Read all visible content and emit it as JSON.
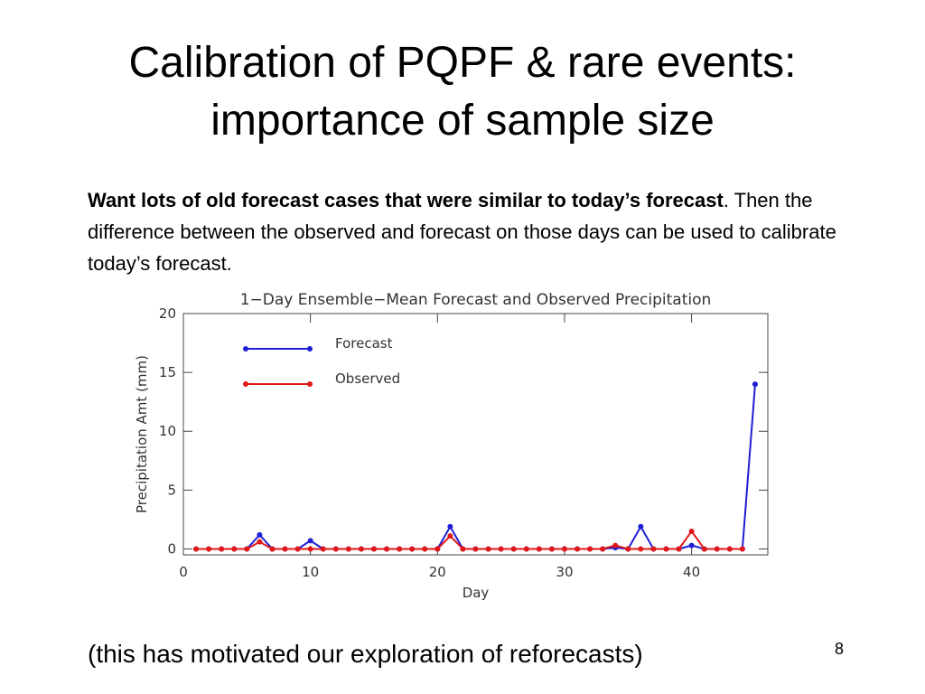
{
  "title": [
    "Calibration of PQPF & rare events:",
    "importance of sample size"
  ],
  "body": {
    "bold": "Want lots of old forecast cases that were similar to today’s forecast",
    "rest": ".  Then the difference between the observed and forecast on those days can be used to calibrate today’s forecast."
  },
  "footer": "(this has motivated our exploration of reforecasts)",
  "page_number": "8",
  "chart_data": {
    "type": "line",
    "title": "1−Day Ensemble−Mean Forecast and Observed Precipitation",
    "x_label": "Day",
    "y_label": "Precipitation Amt (mm)",
    "x": [
      1,
      2,
      3,
      4,
      5,
      6,
      7,
      8,
      9,
      10,
      11,
      12,
      13,
      14,
      15,
      16,
      17,
      18,
      19,
      20,
      21,
      22,
      23,
      24,
      25,
      26,
      27,
      28,
      29,
      30,
      31,
      32,
      33,
      34,
      35,
      36,
      37,
      38,
      39,
      40,
      41,
      42,
      43,
      44,
      45
    ],
    "series": [
      {
        "name": "Forecast",
        "color": "#1f1fd6",
        "values": [
          0,
          0,
          0,
          0,
          0,
          1.2,
          0,
          0,
          0,
          0.7,
          0,
          0,
          0,
          0,
          0,
          0,
          0,
          0,
          0,
          0,
          1.9,
          0,
          0,
          0,
          0,
          0,
          0,
          0,
          0,
          0,
          0,
          0,
          0,
          0.1,
          0,
          1.9,
          0,
          0,
          0,
          0.3,
          0,
          0,
          0,
          0,
          14
        ]
      },
      {
        "name": "Observed",
        "color": "#e01818",
        "values": [
          0,
          0,
          0,
          0,
          0,
          0.6,
          0,
          0,
          0,
          0,
          0,
          0,
          0,
          0,
          0,
          0,
          0,
          0,
          0,
          0,
          1.1,
          0,
          0,
          0,
          0,
          0,
          0,
          0,
          0,
          0,
          0,
          0,
          0,
          0.3,
          0,
          0,
          0,
          0,
          0,
          1.5,
          0,
          0,
          0,
          0,
          null
        ]
      }
    ],
    "xlim": [
      0,
      46
    ],
    "xticks": [
      0,
      10,
      20,
      30,
      40
    ],
    "ylim": [
      -0.5,
      20
    ],
    "yticks": [
      0,
      5,
      10,
      15,
      20
    ],
    "legend": "upper left"
  }
}
